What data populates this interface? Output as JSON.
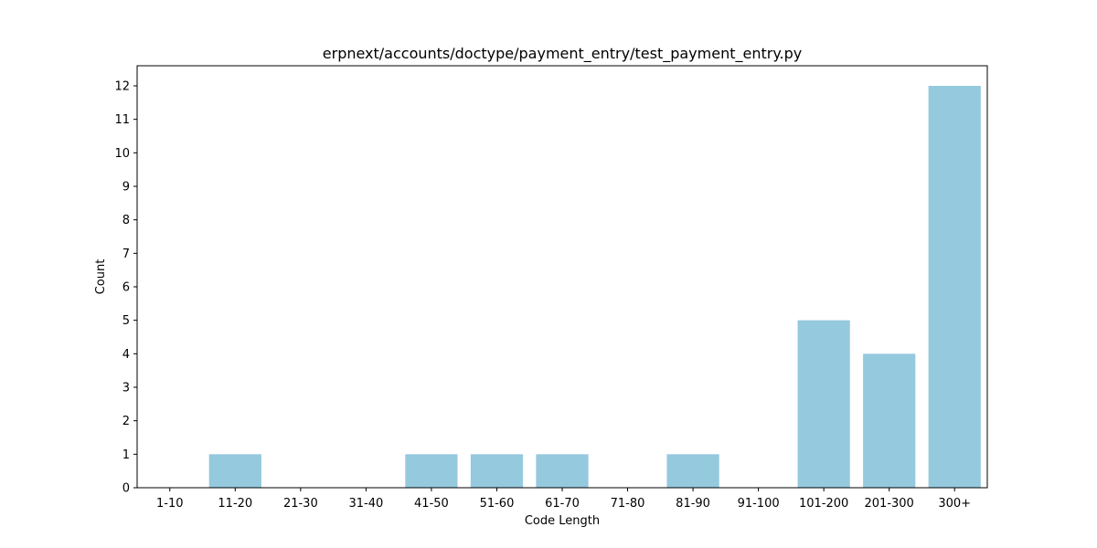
{
  "chart_data": {
    "type": "bar",
    "title": "erpnext/accounts/doctype/payment_entry/test_payment_entry.py",
    "xlabel": "Code Length",
    "ylabel": "Count",
    "categories": [
      "1-10",
      "11-20",
      "21-30",
      "31-40",
      "41-50",
      "51-60",
      "61-70",
      "71-80",
      "81-90",
      "91-100",
      "101-200",
      "201-300",
      "300+"
    ],
    "values": [
      0,
      1,
      0,
      0,
      1,
      1,
      1,
      0,
      1,
      0,
      5,
      4,
      12
    ],
    "ylim": [
      0,
      12.6
    ],
    "yticks": [
      0,
      1,
      2,
      3,
      4,
      5,
      6,
      7,
      8,
      9,
      10,
      11,
      12
    ],
    "grid": false,
    "legend": "none",
    "bar_color": "#95c9de"
  }
}
